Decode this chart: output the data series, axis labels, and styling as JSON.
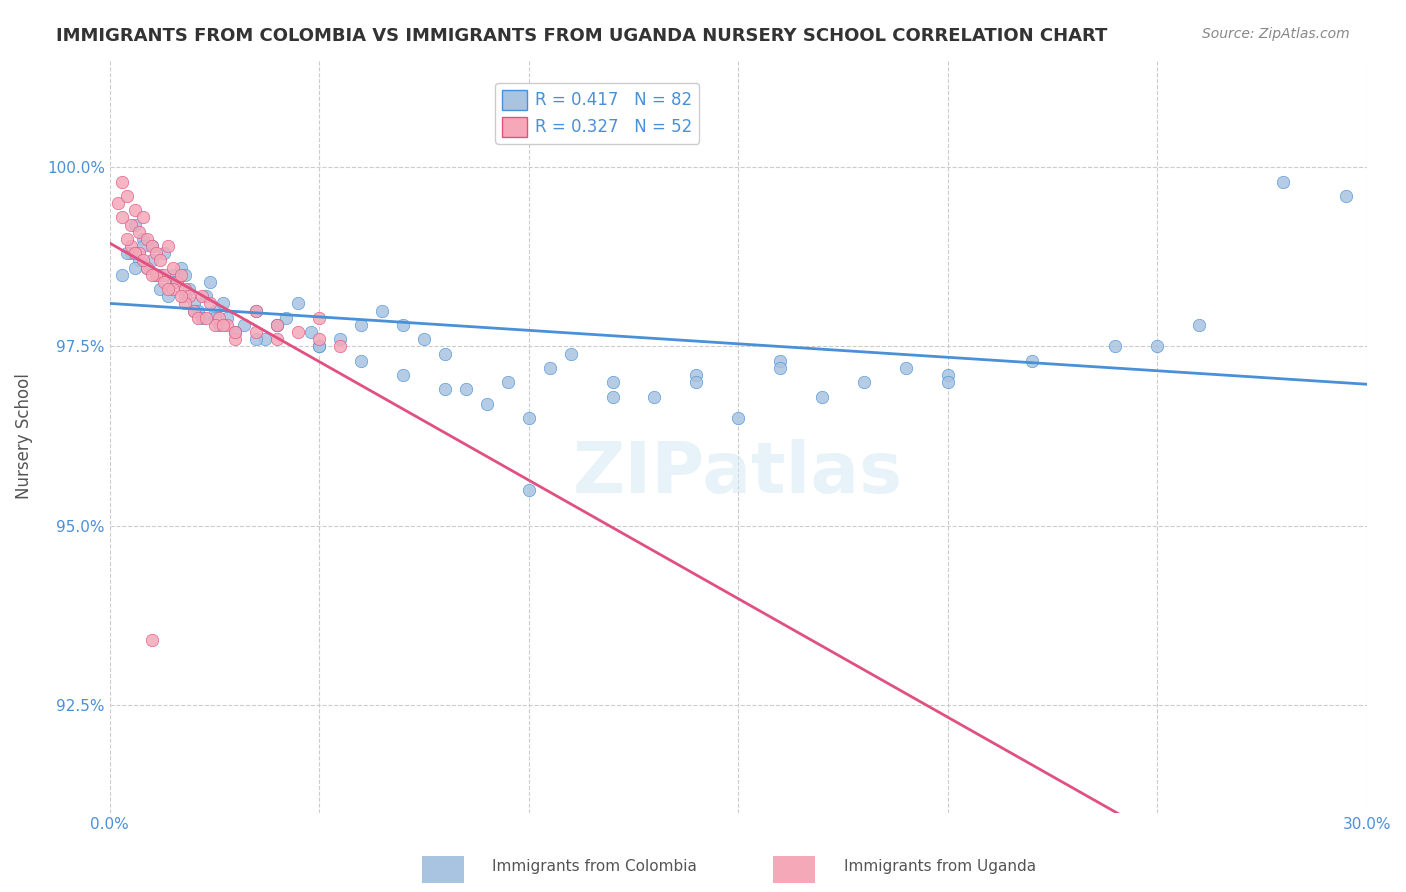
{
  "title": "IMMIGRANTS FROM COLOMBIA VS IMMIGRANTS FROM UGANDA NURSERY SCHOOL CORRELATION CHART",
  "source": "Source: ZipAtlas.com",
  "xlabel": "",
  "ylabel": "Nursery School",
  "xlim": [
    0.0,
    30.0
  ],
  "ylim": [
    91.0,
    101.5
  ],
  "yticks": [
    92.5,
    95.0,
    97.5,
    100.0
  ],
  "ytick_labels": [
    "92.5%",
    "95.0%",
    "97.5%",
    "100.0%"
  ],
  "xticks": [
    0.0,
    5.0,
    10.0,
    15.0,
    20.0,
    25.0,
    30.0
  ],
  "xtick_labels": [
    "0.0%",
    "",
    "",
    "",
    "",
    "",
    "30.0%"
  ],
  "colombia_R": 0.417,
  "colombia_N": 82,
  "uganda_R": 0.327,
  "uganda_N": 52,
  "colombia_color": "#a8c4e0",
  "uganda_color": "#f4a8b8",
  "colombia_line_color": "#4a90d9",
  "uganda_line_color": "#e05080",
  "legend_label_colombia": "Immigrants from Colombia",
  "legend_label_uganda": "Immigrants from Uganda",
  "background_color": "#ffffff",
  "grid_color": "#cccccc",
  "title_color": "#333333",
  "axis_label_color": "#4a90d9",
  "watermark": "ZIPatlas",
  "colombia_scatter_x": [
    0.3,
    0.5,
    0.6,
    0.7,
    0.8,
    0.9,
    1.0,
    1.1,
    1.2,
    1.3,
    1.4,
    1.5,
    1.6,
    1.7,
    1.8,
    1.9,
    2.0,
    2.1,
    2.2,
    2.3,
    2.4,
    2.5,
    2.6,
    2.7,
    2.8,
    3.0,
    3.2,
    3.5,
    3.7,
    4.0,
    4.2,
    4.5,
    4.8,
    5.0,
    5.5,
    6.0,
    6.5,
    7.0,
    7.5,
    8.0,
    8.5,
    9.0,
    9.5,
    10.0,
    10.5,
    11.0,
    12.0,
    13.0,
    14.0,
    15.0,
    16.0,
    17.0,
    18.0,
    19.0,
    20.0,
    22.0,
    25.0,
    28.0,
    0.4,
    0.6,
    0.8,
    1.0,
    1.2,
    1.5,
    1.8,
    2.0,
    2.5,
    3.0,
    3.5,
    4.0,
    5.0,
    6.0,
    7.0,
    8.0,
    10.0,
    12.0,
    14.0,
    16.0,
    20.0,
    24.0,
    26.0,
    29.5
  ],
  "colombia_scatter_y": [
    98.5,
    98.8,
    99.2,
    98.7,
    99.0,
    98.6,
    98.9,
    98.5,
    98.3,
    98.8,
    98.2,
    98.5,
    98.4,
    98.6,
    98.5,
    98.3,
    98.1,
    98.0,
    97.9,
    98.2,
    98.4,
    98.0,
    97.8,
    98.1,
    97.9,
    97.7,
    97.8,
    98.0,
    97.6,
    97.8,
    97.9,
    98.1,
    97.7,
    97.5,
    97.6,
    97.8,
    98.0,
    97.8,
    97.6,
    97.4,
    96.9,
    96.7,
    97.0,
    95.5,
    97.2,
    97.4,
    97.0,
    96.8,
    97.1,
    96.5,
    97.3,
    96.8,
    97.0,
    97.2,
    97.1,
    97.3,
    97.5,
    99.8,
    98.8,
    98.6,
    98.9,
    98.7,
    98.5,
    98.4,
    98.2,
    98.0,
    97.9,
    97.7,
    97.6,
    97.8,
    97.5,
    97.3,
    97.1,
    96.9,
    96.5,
    96.8,
    97.0,
    97.2,
    97.0,
    97.5,
    97.8,
    99.6
  ],
  "uganda_scatter_x": [
    0.2,
    0.3,
    0.4,
    0.5,
    0.6,
    0.7,
    0.8,
    0.9,
    1.0,
    1.1,
    1.2,
    1.3,
    1.4,
    1.5,
    1.6,
    1.7,
    1.8,
    1.9,
    2.0,
    2.2,
    2.4,
    2.6,
    2.8,
    3.0,
    3.5,
    4.0,
    4.5,
    5.0,
    0.3,
    0.5,
    0.7,
    0.9,
    1.1,
    1.3,
    1.5,
    1.8,
    2.1,
    2.5,
    3.0,
    4.0,
    5.5,
    0.4,
    0.6,
    0.8,
    1.0,
    1.4,
    1.7,
    2.3,
    2.7,
    3.5,
    5.0,
    1.0
  ],
  "uganda_scatter_y": [
    99.5,
    99.8,
    99.6,
    99.2,
    99.4,
    99.1,
    99.3,
    99.0,
    98.9,
    98.8,
    98.7,
    98.5,
    98.9,
    98.6,
    98.4,
    98.5,
    98.3,
    98.2,
    98.0,
    98.2,
    98.1,
    97.9,
    97.8,
    97.6,
    98.0,
    97.8,
    97.7,
    97.9,
    99.3,
    98.9,
    98.8,
    98.6,
    98.5,
    98.4,
    98.3,
    98.1,
    97.9,
    97.8,
    97.7,
    97.6,
    97.5,
    99.0,
    98.8,
    98.7,
    98.5,
    98.3,
    98.2,
    97.9,
    97.8,
    97.7,
    97.6,
    93.4
  ]
}
